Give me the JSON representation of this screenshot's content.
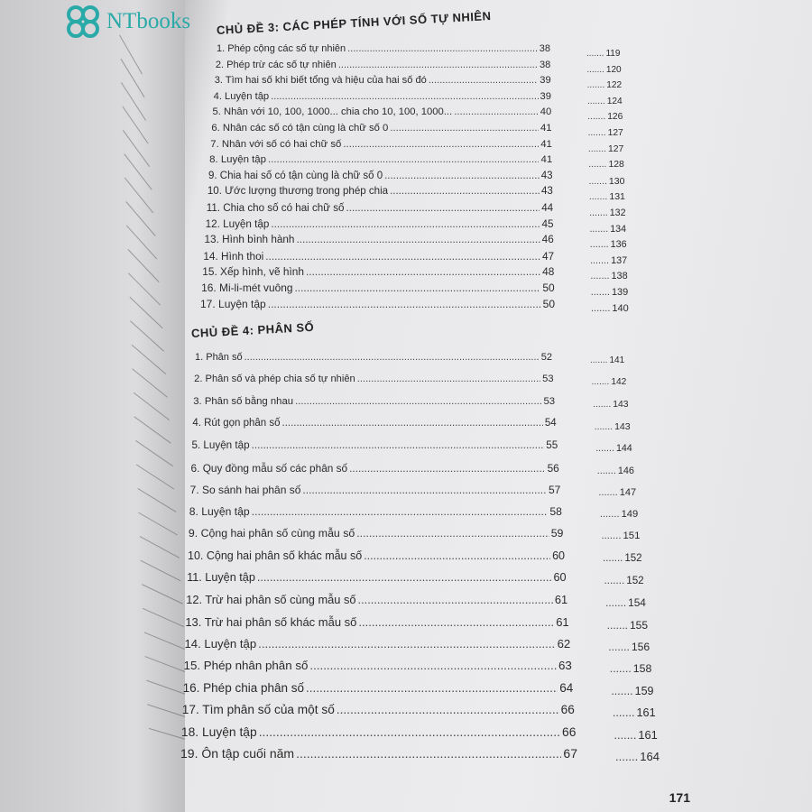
{
  "logo": {
    "text": "NTbooks",
    "color": "#2aa9a9"
  },
  "chapter3": {
    "title": "CHỦ ĐỀ 3: CÁC PHÉP TÍNH VỚI SỐ TỰ NHIÊN",
    "entries": [
      {
        "title": "1. Phép cộng các số tự nhiên",
        "page": "38",
        "ref": "119"
      },
      {
        "title": "2. Phép trừ các số tự nhiên",
        "page": "38",
        "ref": "120"
      },
      {
        "title": "3. Tìm hai số khi biết tổng và hiệu của hai số đó",
        "page": "39",
        "ref": "122"
      },
      {
        "title": "4. Luyện tập",
        "page": "39",
        "ref": "124"
      },
      {
        "title": "5. Nhân với 10, 100, 1000... chia cho 10, 100, 1000...",
        "page": "40",
        "ref": "126"
      },
      {
        "title": "6. Nhân các số có tận cùng là chữ số 0",
        "page": "41",
        "ref": "127"
      },
      {
        "title": "7. Nhân với số có hai chữ số",
        "page": "41",
        "ref": "127"
      },
      {
        "title": "8. Luyện tập",
        "page": "41",
        "ref": "128"
      },
      {
        "title": "9. Chia hai số có tận cùng là chữ số 0",
        "page": "43",
        "ref": "130"
      },
      {
        "title": "10. Ước lượng thương trong phép chia",
        "page": "43",
        "ref": "131"
      },
      {
        "title": "11. Chia cho số có hai chữ số",
        "page": "44",
        "ref": "132"
      },
      {
        "title": "12. Luyện tập",
        "page": "45",
        "ref": "134"
      },
      {
        "title": "13. Hình bình hành",
        "page": "46",
        "ref": "136"
      },
      {
        "title": "14. Hình thoi",
        "page": "47",
        "ref": "137"
      },
      {
        "title": "15. Xếp hình, vẽ hình",
        "page": "48",
        "ref": "138"
      },
      {
        "title": "16. Mi-li-mét vuông",
        "page": "50",
        "ref": "139"
      },
      {
        "title": "17. Luyện tập",
        "page": "50",
        "ref": "140"
      }
    ]
  },
  "chapter4": {
    "title": "CHỦ ĐỀ 4: PHÂN SỐ",
    "entries": [
      {
        "title": "1. Phân số",
        "page": "52",
        "ref": "141"
      },
      {
        "title": "2. Phân số và phép chia số tự nhiên",
        "page": "53",
        "ref": "142"
      },
      {
        "title": "3. Phân số bằng nhau",
        "page": "53",
        "ref": "143"
      },
      {
        "title": "4. Rút gọn phân số",
        "page": "54",
        "ref": "143"
      },
      {
        "title": "5. Luyện tập",
        "page": "55",
        "ref": "144"
      },
      {
        "title": "6. Quy đồng mẫu số các phân số",
        "page": "56",
        "ref": "146"
      },
      {
        "title": "7. So sánh hai phân số",
        "page": "57",
        "ref": "147"
      },
      {
        "title": "8. Luyện tập",
        "page": "58",
        "ref": "149"
      },
      {
        "title": "9. Cộng hai phân số cùng mẫu số",
        "page": "59",
        "ref": "151"
      },
      {
        "title": "10. Cộng hai phân số khác mẫu số",
        "page": "60",
        "ref": "152"
      },
      {
        "title": "11. Luyện tập",
        "page": "60",
        "ref": "152"
      },
      {
        "title": "12. Trừ hai phân số cùng mẫu số",
        "page": "61",
        "ref": "154"
      },
      {
        "title": "13. Trừ hai phân số khác mẫu số",
        "page": "61",
        "ref": "155"
      },
      {
        "title": "14. Luyện tập",
        "page": "62",
        "ref": "156"
      },
      {
        "title": "15. Phép nhân phân số",
        "page": "63",
        "ref": "158"
      },
      {
        "title": "16. Phép chia phân số",
        "page": "64",
        "ref": "159"
      },
      {
        "title": "17. Tìm phân số của một số",
        "page": "66",
        "ref": "161"
      },
      {
        "title": "18. Luyện tập",
        "page": "66",
        "ref": "161"
      },
      {
        "title": "19. Ôn tập cuối năm",
        "page": "67",
        "ref": "164"
      }
    ]
  },
  "page_number": "171"
}
